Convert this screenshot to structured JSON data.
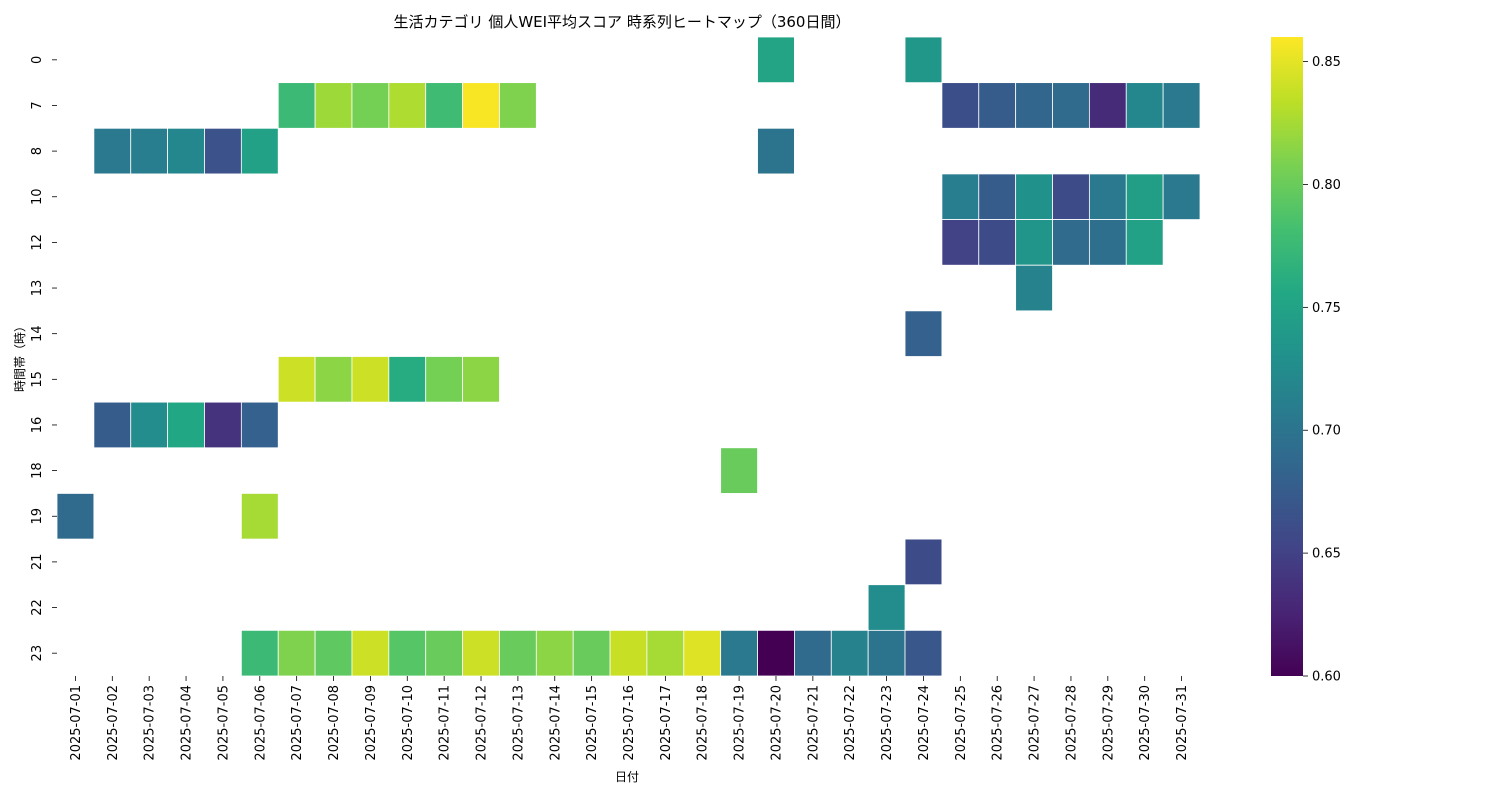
{
  "chart_data": {
    "type": "heatmap",
    "title": "生活カテゴリ 個人WEI平均スコア 時系列ヒートマップ（360日間）",
    "xlabel": "日付",
    "ylabel": "時間帯（時）",
    "x_categories": [
      "2025-07-01",
      "2025-07-02",
      "2025-07-03",
      "2025-07-04",
      "2025-07-05",
      "2025-07-06",
      "2025-07-07",
      "2025-07-08",
      "2025-07-09",
      "2025-07-10",
      "2025-07-11",
      "2025-07-12",
      "2025-07-13",
      "2025-07-14",
      "2025-07-15",
      "2025-07-16",
      "2025-07-17",
      "2025-07-18",
      "2025-07-19",
      "2025-07-20",
      "2025-07-21",
      "2025-07-22",
      "2025-07-23",
      "2025-07-24",
      "2025-07-25",
      "2025-07-26",
      "2025-07-27",
      "2025-07-28",
      "2025-07-29",
      "2025-07-30",
      "2025-07-31"
    ],
    "y_categories": [
      "0",
      "7",
      "8",
      "10",
      "12",
      "13",
      "14",
      "15",
      "16",
      "18",
      "19",
      "21",
      "22",
      "23"
    ],
    "colormap": "viridis",
    "vmin": 0.6,
    "vmax": 0.86,
    "colorbar_ticks": [
      "0.60",
      "0.65",
      "0.70",
      "0.75",
      "0.80",
      "0.85"
    ],
    "grid": false,
    "cell_border_color": "#ffffff",
    "values": [
      [
        null,
        null,
        null,
        null,
        null,
        null,
        null,
        null,
        null,
        null,
        null,
        null,
        null,
        null,
        null,
        null,
        null,
        null,
        null,
        0.752,
        null,
        null,
        null,
        0.737,
        null,
        null,
        null,
        null,
        null,
        null,
        null
      ],
      [
        null,
        null,
        null,
        null,
        null,
        null,
        0.775,
        0.822,
        0.805,
        0.828,
        0.778,
        0.858,
        0.81,
        null,
        null,
        null,
        null,
        null,
        null,
        null,
        null,
        null,
        null,
        null,
        0.662,
        0.675,
        0.685,
        0.69,
        0.632,
        0.72,
        0.705
      ],
      [
        null,
        0.705,
        0.71,
        0.72,
        0.665,
        0.748,
        null,
        null,
        null,
        null,
        null,
        null,
        null,
        null,
        null,
        null,
        null,
        null,
        null,
        0.7,
        null,
        null,
        null,
        null,
        null,
        null,
        null,
        null,
        null,
        null,
        null
      ],
      [
        null,
        null,
        null,
        null,
        null,
        null,
        null,
        null,
        null,
        null,
        null,
        null,
        null,
        null,
        null,
        null,
        null,
        null,
        null,
        null,
        null,
        null,
        null,
        null,
        0.71,
        0.675,
        0.73,
        0.66,
        0.705,
        0.745,
        0.705
      ],
      [
        null,
        null,
        null,
        null,
        null,
        null,
        null,
        null,
        null,
        null,
        null,
        null,
        null,
        null,
        null,
        null,
        null,
        null,
        null,
        null,
        null,
        null,
        null,
        null,
        0.65,
        0.66,
        0.735,
        0.69,
        0.695,
        0.748,
        null
      ],
      [
        null,
        null,
        null,
        null,
        null,
        null,
        null,
        null,
        null,
        null,
        null,
        null,
        null,
        null,
        null,
        null,
        null,
        null,
        null,
        null,
        null,
        null,
        null,
        null,
        null,
        null,
        0.715,
        null,
        null,
        null,
        null
      ],
      [
        null,
        null,
        null,
        null,
        null,
        null,
        null,
        null,
        null,
        null,
        null,
        null,
        null,
        null,
        null,
        null,
        null,
        null,
        null,
        null,
        null,
        null,
        null,
        0.68,
        null,
        null,
        null,
        null,
        null,
        null,
        null
      ],
      [
        null,
        null,
        null,
        null,
        null,
        null,
        0.84,
        0.815,
        0.84,
        0.76,
        0.805,
        0.815,
        null,
        null,
        null,
        null,
        null,
        null,
        null,
        null,
        null,
        null,
        null,
        null,
        null,
        null,
        null,
        null,
        null,
        null,
        null
      ],
      [
        null,
        0.675,
        0.725,
        0.755,
        0.638,
        0.68,
        null,
        null,
        null,
        null,
        null,
        null,
        null,
        null,
        null,
        null,
        null,
        null,
        null,
        null,
        null,
        null,
        null,
        null,
        null,
        null,
        null,
        null,
        null,
        null,
        null
      ],
      [
        null,
        null,
        null,
        null,
        null,
        null,
        null,
        null,
        null,
        null,
        null,
        null,
        null,
        null,
        null,
        null,
        null,
        null,
        0.8,
        null,
        null,
        null,
        null,
        null,
        null,
        null,
        null,
        null,
        null,
        null,
        null
      ],
      [
        0.69,
        null,
        null,
        null,
        null,
        0.825,
        null,
        null,
        null,
        null,
        null,
        null,
        null,
        null,
        null,
        null,
        null,
        null,
        null,
        null,
        null,
        null,
        null,
        null,
        null,
        null,
        null,
        null,
        null,
        null,
        null
      ],
      [
        null,
        null,
        null,
        null,
        null,
        null,
        null,
        null,
        null,
        null,
        null,
        null,
        null,
        null,
        null,
        null,
        null,
        null,
        null,
        null,
        null,
        null,
        null,
        0.66,
        null,
        null,
        null,
        null,
        null,
        null,
        null
      ],
      [
        null,
        null,
        null,
        null,
        null,
        null,
        null,
        null,
        null,
        null,
        null,
        null,
        null,
        null,
        null,
        null,
        null,
        null,
        null,
        null,
        null,
        null,
        0.725,
        null,
        null,
        null,
        null,
        null,
        null,
        null,
        null
      ],
      [
        null,
        null,
        null,
        null,
        null,
        0.775,
        0.81,
        0.795,
        0.84,
        0.79,
        0.8,
        0.84,
        0.8,
        0.815,
        0.8,
        0.838,
        0.825,
        0.848,
        0.705,
        0.6,
        0.69,
        0.715,
        0.7,
        0.67,
        null,
        null,
        null,
        null,
        null,
        null,
        null
      ]
    ]
  }
}
